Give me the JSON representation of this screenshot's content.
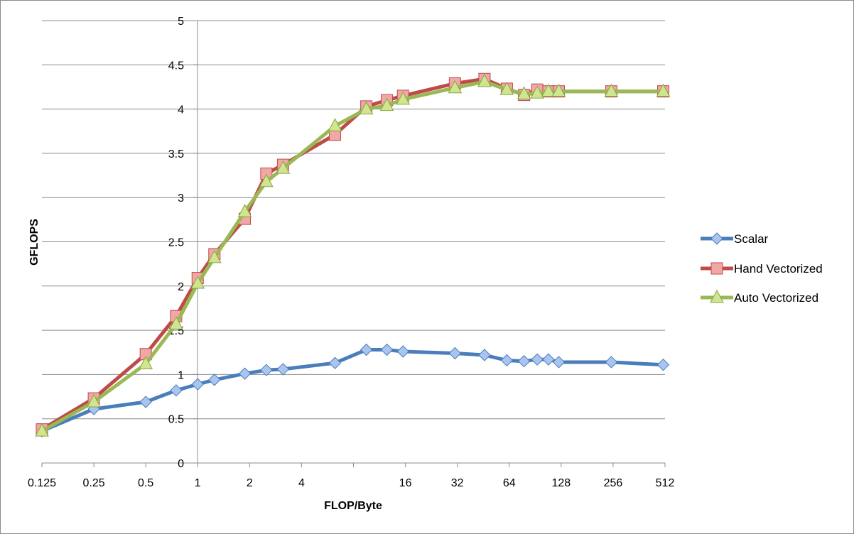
{
  "chart_data": {
    "type": "line",
    "title": "",
    "xlabel": "FLOP/Byte",
    "ylabel": "GFLOPS",
    "x_scale": "log2",
    "xlim": [
      0.125,
      512
    ],
    "ylim": [
      0,
      5
    ],
    "x_ticks": [
      "0.125",
      "0.25",
      "0.5",
      "1",
      "2",
      "4",
      "16",
      "32",
      "64",
      "128",
      "256",
      "512"
    ],
    "y_ticks": [
      "0",
      "0.5",
      "1",
      "1.5",
      "2",
      "2.5",
      "3",
      "3.5",
      "4",
      "4.5",
      "5"
    ],
    "grid": "horizontal major gridlines",
    "legend_position": "right",
    "series": [
      {
        "name": "Scalar",
        "color": "#4a7ebb",
        "marker": "diamond",
        "x": [
          0.125,
          0.25,
          0.5,
          0.75,
          1,
          1.25,
          1.875,
          2.5,
          3.125,
          6.25,
          9.5,
          12.5,
          15.5,
          31,
          46,
          62,
          78,
          93,
          108,
          124,
          250,
          500
        ],
        "y": [
          0.36,
          0.61,
          0.69,
          0.82,
          0.89,
          0.94,
          1.01,
          1.05,
          1.06,
          1.13,
          1.28,
          1.28,
          1.26,
          1.24,
          1.22,
          1.16,
          1.15,
          1.17,
          1.17,
          1.14,
          1.14,
          1.11
        ]
      },
      {
        "name": "Hand Vectorized",
        "color": "#be4b48",
        "marker": "square",
        "x": [
          0.125,
          0.25,
          0.5,
          0.75,
          1,
          1.25,
          1.875,
          2.5,
          3.125,
          6.25,
          9.5,
          12.5,
          15.5,
          31,
          46,
          62,
          78,
          93,
          108,
          124,
          250,
          500
        ],
        "y": [
          0.38,
          0.73,
          1.23,
          1.66,
          2.09,
          2.36,
          2.76,
          3.27,
          3.37,
          3.71,
          4.03,
          4.1,
          4.15,
          4.29,
          4.34,
          4.23,
          4.16,
          4.22,
          4.2,
          4.2,
          4.2,
          4.2
        ]
      },
      {
        "name": "Auto Vectorized",
        "color": "#98b954",
        "marker": "triangle",
        "x": [
          0.125,
          0.25,
          0.5,
          0.75,
          1,
          1.25,
          1.875,
          2.5,
          3.125,
          6.25,
          9.5,
          12.5,
          15.5,
          31,
          46,
          62,
          78,
          93,
          108,
          124,
          250,
          500
        ],
        "y": [
          0.36,
          0.69,
          1.12,
          1.57,
          2.03,
          2.32,
          2.84,
          3.18,
          3.33,
          3.81,
          4.0,
          4.04,
          4.11,
          4.24,
          4.31,
          4.22,
          4.17,
          4.18,
          4.2,
          4.2,
          4.2,
          4.2
        ]
      }
    ]
  }
}
